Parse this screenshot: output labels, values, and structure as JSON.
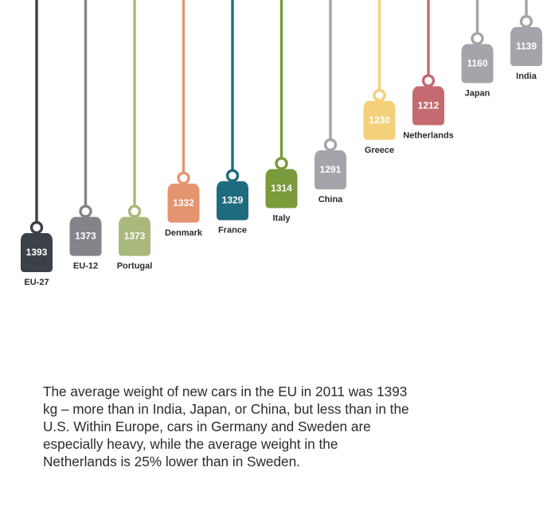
{
  "chart_data": {
    "type": "bar",
    "style": "hanging weight tags",
    "categories": [
      "EU-27",
      "EU-12",
      "Portugal",
      "Denmark",
      "France",
      "Italy",
      "China",
      "Greece",
      "Netherlands",
      "Japan",
      "India"
    ],
    "values": [
      1393,
      1373,
      1373,
      1332,
      1329,
      1314,
      1291,
      1230,
      1212,
      1160,
      1139
    ],
    "value_labels": [
      "1393",
      "1373",
      "1373",
      "1332",
      "1329",
      "1314",
      "1291",
      "1230",
      "1212",
      "1160",
      "1139"
    ],
    "colors": [
      "#3b4049",
      "#838389",
      "#a9b97b",
      "#e59470",
      "#1f6b7e",
      "#7a9a3b",
      "#a6a4ab",
      "#f5d07a",
      "#c56a70",
      "#a6a4ab",
      "#a6a4ab"
    ],
    "unit": "kg",
    "title": "",
    "xlabel": "",
    "ylabel": "",
    "grid": false,
    "legend": "none"
  },
  "caption": "The average weight of new cars in the EU in 2011 was 1393 kg – more than in India, Japan, or China, but less than in the U.S. Within Europe, cars in Germany and Sweden are especially heavy, while the average weight in the Netherlands is 25% lower than in Sweden."
}
